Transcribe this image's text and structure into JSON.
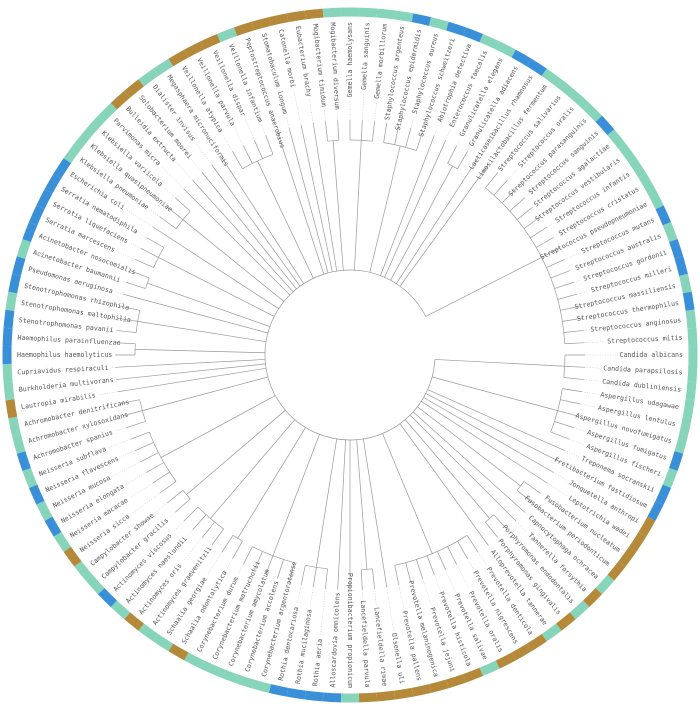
{
  "taxa": [
    {
      "label": "Candida albicans",
      "color": "#86d4b9"
    },
    {
      "label": "Candida parapsilosis",
      "color": "#86d4b9"
    },
    {
      "label": "Candida dubliniensis",
      "color": "#86d4b9"
    },
    {
      "label": "Aspergillus udagawae",
      "color": "#86d4b9"
    },
    {
      "label": "Aspergillus lentulus",
      "color": "#86d4b9"
    },
    {
      "label": "Aspergillus novofumigatus",
      "color": "#86d4b9"
    },
    {
      "label": "Aspergillus fumigatus",
      "color": "#3a8fd9"
    },
    {
      "label": "Aspergillus fischeri",
      "color": "#86d4b9"
    },
    {
      "label": "Treponema socranskii",
      "color": "#3a8fd9"
    },
    {
      "label": "Fretibacterium fastidiosum",
      "color": "#3a8fd9"
    },
    {
      "label": "Jonquetella anthropi",
      "color": "#b5893a"
    },
    {
      "label": "Leptotrichia wadei",
      "color": "#b5893a"
    },
    {
      "label": "Fusobacterium nucleatum",
      "color": "#b5893a"
    },
    {
      "label": "Fusobacterium periodonticum",
      "color": "#b5893a"
    },
    {
      "label": "Capnocytophaga ochracea",
      "color": "#86d4b9"
    },
    {
      "label": "Tannerella forsythia",
      "color": "#b5893a"
    },
    {
      "label": "Porphyromonas endodontalis",
      "color": "#86d4b9"
    },
    {
      "label": "Porphyromonas gingivalis",
      "color": "#b5893a"
    },
    {
      "label": "Alloprevotella tannerae",
      "color": "#86d4b9"
    },
    {
      "label": "Prevotella denticola",
      "color": "#b5893a"
    },
    {
      "label": "Prevotella nigrescens",
      "color": "#b5893a"
    },
    {
      "label": "Prevotella oralis",
      "color": "#b5893a"
    },
    {
      "label": "Prevotella salivae",
      "color": "#86d4b9"
    },
    {
      "label": "Prevotella histicola",
      "color": "#b5893a"
    },
    {
      "label": "Prevotella jejuni",
      "color": "#b5893a"
    },
    {
      "label": "Prevotella melaninogenica",
      "color": "#b5893a"
    },
    {
      "label": "Prevotella pallens",
      "color": "#b5893a"
    },
    {
      "label": "Olsenella uli",
      "color": "#b5893a"
    },
    {
      "label": "Lancefieldella rimae",
      "color": "#b5893a"
    },
    {
      "label": "Lancefieldella parvula",
      "color": "#b5893a"
    },
    {
      "label": "Propionibacterium propionicum",
      "color": "#86d4b9"
    },
    {
      "label": "Alloscardovia omnicolens",
      "color": "#3a8fd9"
    },
    {
      "label": "Rothia aeria",
      "color": "#3a8fd9"
    },
    {
      "label": "Rothia mucilaginosa",
      "color": "#3a8fd9"
    },
    {
      "label": "Rothia dentocariosa",
      "color": "#3a8fd9"
    },
    {
      "label": "Corynebacterium argentoratense",
      "color": "#86d4b9"
    },
    {
      "label": "Corynebacterium accolens",
      "color": "#86d4b9"
    },
    {
      "label": "Corynebacterium amycolatum",
      "color": "#86d4b9"
    },
    {
      "label": "Corynebacterium matruchotii",
      "color": "#86d4b9"
    },
    {
      "label": "Corynebacterium durum",
      "color": "#86d4b9"
    },
    {
      "label": "Schaalia odontolytica",
      "color": "#b5893a"
    },
    {
      "label": "Schaalia georgiae",
      "color": "#86d4b9"
    },
    {
      "label": "Actinomyces graevenitzii",
      "color": "#86d4b9"
    },
    {
      "label": "Actinomyces oris",
      "color": "#b5893a"
    },
    {
      "label": "Actinomyces naeslundii",
      "color": "#86d4b9"
    },
    {
      "label": "Actinomyces viscosus",
      "color": "#3a8fd9"
    },
    {
      "label": "Campylobacter gracilis",
      "color": "#86d4b9"
    },
    {
      "label": "Campylobacter showae",
      "color": "#86d4b9"
    },
    {
      "label": "Neisseria sicca",
      "color": "#b5893a"
    },
    {
      "label": "Neisseria macacae",
      "color": "#86d4b9"
    },
    {
      "label": "Neisseria elongata",
      "color": "#3a8fd9"
    },
    {
      "label": "Neisseria mucosa",
      "color": "#86d4b9"
    },
    {
      "label": "Neisseria flavescens",
      "color": "#3a8fd9"
    },
    {
      "label": "Neisseria subflava",
      "color": "#86d4b9"
    },
    {
      "label": "Achromobacter spanius",
      "color": "#3a8fd9"
    },
    {
      "label": "Achromobacter xylosoxidans",
      "color": "#86d4b9"
    },
    {
      "label": "Achromobacter denitrificans",
      "color": "#86d4b9"
    },
    {
      "label": "Lautropia mirabilis",
      "color": "#b5893a"
    },
    {
      "label": "Burkholderia multivorans",
      "color": "#86d4b9"
    },
    {
      "label": "Cupriavidus respiraculi",
      "color": "#86d4b9"
    },
    {
      "label": "Haemophilus haemolyticus",
      "color": "#3a8fd9"
    },
    {
      "label": "Haemophilus parainfluenzae",
      "color": "#3a8fd9"
    },
    {
      "label": "Stenotrophomonas pavanii",
      "color": "#3a8fd9"
    },
    {
      "label": "Stenotrophomonas maltophilia",
      "color": "#86d4b9"
    },
    {
      "label": "Stenotrophomonas rhizophila",
      "color": "#3a8fd9"
    },
    {
      "label": "Pseudomonas aeruginosa",
      "color": "#3a8fd9"
    },
    {
      "label": "Acinetobacter baumannii",
      "color": "#86d4b9"
    },
    {
      "label": "Acinetobacter nosocomialis",
      "color": "#3a8fd9"
    },
    {
      "label": "Serratia marcescens",
      "color": "#3a8fd9"
    },
    {
      "label": "Serratia liquefaciens",
      "color": "#3a8fd9"
    },
    {
      "label": "Serratia nematodiphila",
      "color": "#3a8fd9"
    },
    {
      "label": "Escherichia coli",
      "color": "#3a8fd9"
    },
    {
      "label": "Klebsiella pneumoniae",
      "color": "#86d4b9"
    },
    {
      "label": "Klebsiella quasipneumoniae",
      "color": "#86d4b9"
    },
    {
      "label": "Klebsiella variicola",
      "color": "#86d4b9"
    },
    {
      "label": "Parvimonas micra",
      "color": "#86d4b9"
    },
    {
      "label": "Bulleidia extructa",
      "color": "#b5893a"
    },
    {
      "label": "Solobacterium moorei",
      "color": "#b5893a"
    },
    {
      "label": "Dialister invisus",
      "color": "#86d4b9"
    },
    {
      "label": "Megasphaera micronuciformis",
      "color": "#86d4b9"
    },
    {
      "label": "Veillonella atypica",
      "color": "#b5893a"
    },
    {
      "label": "Veillonella parvula",
      "color": "#b5893a"
    },
    {
      "label": "Veillonella dispar",
      "color": "#b5893a"
    },
    {
      "label": "Veillonella infantium",
      "color": "#86d4b9"
    },
    {
      "label": "Peptostreptococcus anaerobius",
      "color": "#b5893a"
    },
    {
      "label": "Stomatobaculum longum",
      "color": "#b5893a"
    },
    {
      "label": "Catonella morbi",
      "color": "#b5893a"
    },
    {
      "label": "Eubacterium brachy",
      "color": "#b5893a"
    },
    {
      "label": "Mogibacterium timidum",
      "color": "#b5893a"
    },
    {
      "label": "Mogibacterium diversum",
      "color": "#86d4b9"
    },
    {
      "label": "Gemella haemolysans",
      "color": "#86d4b9"
    },
    {
      "label": "Gemella sanguinis",
      "color": "#86d4b9"
    },
    {
      "label": "Gemella morbillorum",
      "color": "#86d4b9"
    },
    {
      "label": "Staphylococcus argenteus",
      "color": "#86d4b9"
    },
    {
      "label": "Staphylococcus epidermidis",
      "color": "#3a8fd9"
    },
    {
      "label": "Staphylococcus aureus",
      "color": "#86d4b9"
    },
    {
      "label": "Staphylococcus schweitzeri",
      "color": "#3a8fd9"
    },
    {
      "label": "Abiotrophia defectiva",
      "color": "#3a8fd9"
    },
    {
      "label": "Enterococcus faecalis",
      "color": "#86d4b9"
    },
    {
      "label": "Granulicatella elegans",
      "color": "#86d4b9"
    },
    {
      "label": "Granulicatella adiacens",
      "color": "#3a8fd9"
    },
    {
      "label": "Lacticaseibacillus rhamnosus",
      "color": "#3a8fd9"
    },
    {
      "label": "Limosilactobacillus fermentum",
      "color": "#86d4b9"
    },
    {
      "label": "Streptococcus salivarius",
      "color": "#86d4b9"
    },
    {
      "label": "Streptococcus oralis",
      "color": "#86d4b9"
    },
    {
      "label": "Streptococcus parasanguinis",
      "color": "#86d4b9"
    },
    {
      "label": "Streptococcus sanguinis",
      "color": "#3a8fd9"
    },
    {
      "label": "Streptococcus agalactiae",
      "color": "#86d4b9"
    },
    {
      "label": "Streptococcus vestibularis",
      "color": "#86d4b9"
    },
    {
      "label": "Streptococcus infantis",
      "color": "#86d4b9"
    },
    {
      "label": "Streptococcus cristatus",
      "color": "#86d4b9"
    },
    {
      "label": "Streptococcus pseudopneumoniae",
      "color": "#86d4b9"
    },
    {
      "label": "Streptococcus mutans",
      "color": "#3a8fd9"
    },
    {
      "label": "Streptococcus australis",
      "color": "#86d4b9"
    },
    {
      "label": "Streptococcus gordonii",
      "color": "#3a8fd9"
    },
    {
      "label": "Streptococcus milleri",
      "color": "#3a8fd9"
    },
    {
      "label": "Streptococcus massiliensis",
      "color": "#86d4b9"
    },
    {
      "label": "Streptococcus thermophilus",
      "color": "#3a8fd9"
    },
    {
      "label": "Streptococcus anginosus",
      "color": "#86d4b9"
    },
    {
      "label": "Streptococcus mitis",
      "color": "#86d4b9"
    }
  ]
}
